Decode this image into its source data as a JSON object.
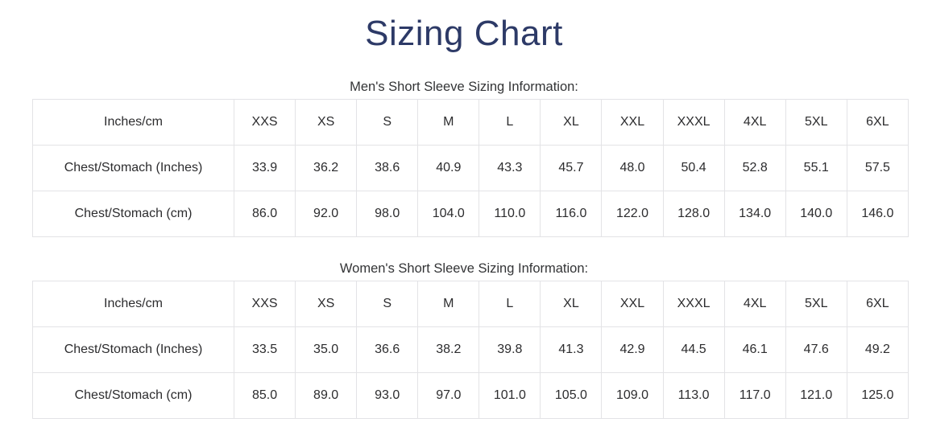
{
  "page": {
    "title": "Sizing Chart"
  },
  "colors": {
    "title_text": "#2d3a67",
    "table_border": "#e3e3e6",
    "body_text": "#2c2c2e"
  },
  "sections": [
    {
      "heading": "Men's Short Sleeve Sizing Information:",
      "table": {
        "columns": [
          "Inches/cm",
          "XXS",
          "XS",
          "S",
          "M",
          "L",
          "XL",
          "XXL",
          "XXXL",
          "4XL",
          "5XL",
          "6XL"
        ],
        "rows": [
          [
            "Chest/Stomach (Inches)",
            "33.9",
            "36.2",
            "38.6",
            "40.9",
            "43.3",
            "45.7",
            "48.0",
            "50.4",
            "52.8",
            "55.1",
            "57.5"
          ],
          [
            "Chest/Stomach (cm)",
            "86.0",
            "92.0",
            "98.0",
            "104.0",
            "110.0",
            "116.0",
            "122.0",
            "128.0",
            "134.0",
            "140.0",
            "146.0"
          ]
        ]
      }
    },
    {
      "heading": "Women's Short Sleeve Sizing Information:",
      "table": {
        "columns": [
          "Inches/cm",
          "XXS",
          "XS",
          "S",
          "M",
          "L",
          "XL",
          "XXL",
          "XXXL",
          "4XL",
          "5XL",
          "6XL"
        ],
        "rows": [
          [
            "Chest/Stomach (Inches)",
            "33.5",
            "35.0",
            "36.6",
            "38.2",
            "39.8",
            "41.3",
            "42.9",
            "44.5",
            "46.1",
            "47.6",
            "49.2"
          ],
          [
            "Chest/Stomach (cm)",
            "85.0",
            "89.0",
            "93.0",
            "97.0",
            "101.0",
            "105.0",
            "109.0",
            "113.0",
            "117.0",
            "121.0",
            "125.0"
          ]
        ]
      }
    }
  ]
}
